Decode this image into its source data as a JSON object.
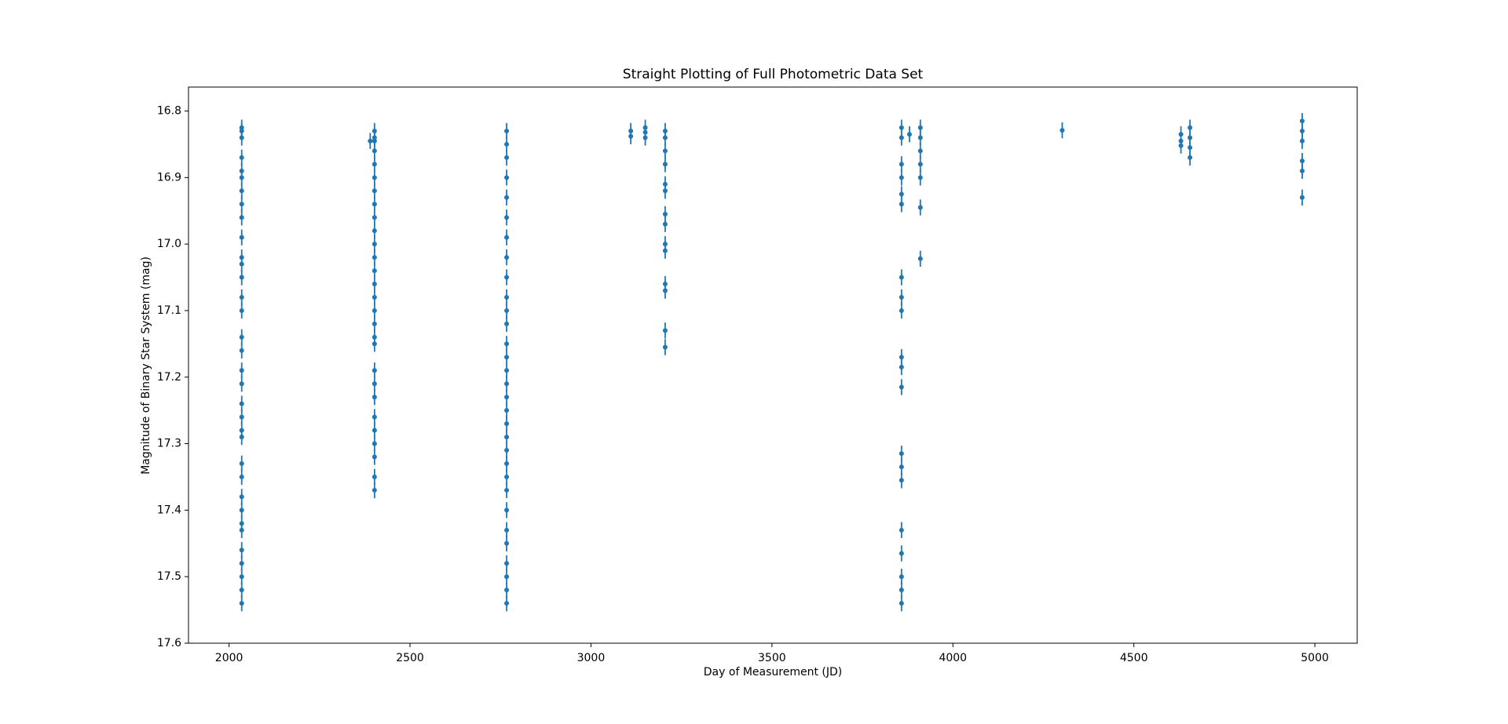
{
  "chart_data": {
    "type": "errorbar-scatter",
    "title": "Straight Plotting of Full Photometric Data Set",
    "x_label": "Day of Measurement (JD)",
    "y_label": "Magnitude of Binary Star System (mag)",
    "color": "#1f77b4",
    "xlim": [
      1888,
      5117
    ],
    "ylim": [
      16.764,
      17.6
    ],
    "y_inverted": true,
    "xticks": [
      2000,
      2500,
      3000,
      3500,
      4000,
      4500,
      5000
    ],
    "yticks": [
      16.8,
      16.9,
      {
        "value": 17.0,
        "label": "17.0"
      },
      17.1,
      17.2,
      17.3,
      17.4,
      17.5,
      17.6
    ],
    "yerr": 0.012,
    "x": [
      2035,
      2035,
      2035,
      2035,
      2035,
      2035,
      2035,
      2035,
      2035,
      2035,
      2035,
      2035,
      2035,
      2035,
      2035,
      2035,
      2035,
      2035,
      2035,
      2035,
      2035,
      2035,
      2035,
      2035,
      2035,
      2035,
      2035,
      2035,
      2035,
      2035,
      2035,
      2035,
      2035,
      2035,
      2390,
      2402,
      2402,
      2402,
      2402,
      2402,
      2402,
      2402,
      2402,
      2402,
      2402,
      2402,
      2402,
      2402,
      2402,
      2402,
      2402,
      2402,
      2402,
      2402,
      2402,
      2402,
      2402,
      2402,
      2402,
      2402,
      2402,
      2402,
      2402,
      2767,
      2767,
      2767,
      2767,
      2767,
      2767,
      2767,
      2767,
      2767,
      2767,
      2767,
      2767,
      2767,
      2767,
      2767,
      2767,
      2767,
      2767,
      2767,
      2767,
      2767,
      2767,
      2767,
      2767,
      2767,
      2767,
      2767,
      2767,
      2767,
      2767,
      2767,
      3110,
      3110,
      3150,
      3150,
      3150,
      3205,
      3205,
      3205,
      3205,
      3205,
      3205,
      3205,
      3205,
      3205,
      3205,
      3205,
      3205,
      3205,
      3205,
      3858,
      3858,
      3858,
      3858,
      3858,
      3858,
      3858,
      3858,
      3858,
      3858,
      3858,
      3858,
      3858,
      3858,
      3858,
      3858,
      3858,
      3858,
      3858,
      3858,
      3880,
      3910,
      3910,
      3910,
      3910,
      3910,
      3910,
      3910,
      4302,
      4630,
      4630,
      4630,
      4655,
      4655,
      4655,
      4655,
      4965,
      4965,
      4965,
      4965,
      4965,
      4965
    ],
    "values": [
      16.825,
      16.83,
      16.84,
      16.87,
      16.89,
      16.9,
      16.92,
      16.94,
      16.96,
      16.99,
      17.02,
      17.03,
      17.05,
      17.08,
      17.1,
      17.14,
      17.16,
      17.19,
      17.21,
      17.24,
      17.26,
      17.28,
      17.29,
      17.33,
      17.35,
      17.38,
      17.4,
      17.42,
      17.43,
      17.46,
      17.48,
      17.5,
      17.52,
      17.54,
      16.845,
      16.83,
      16.84,
      16.845,
      16.86,
      16.88,
      16.9,
      16.92,
      16.94,
      16.96,
      16.98,
      17.0,
      17.02,
      17.04,
      17.06,
      17.08,
      17.1,
      17.12,
      17.14,
      17.15,
      17.19,
      17.21,
      17.23,
      17.26,
      17.28,
      17.3,
      17.32,
      17.35,
      17.37,
      16.83,
      16.85,
      16.87,
      16.9,
      16.93,
      16.96,
      16.99,
      17.02,
      17.05,
      17.08,
      17.1,
      17.12,
      17.15,
      17.17,
      17.19,
      17.21,
      17.23,
      17.25,
      17.27,
      17.29,
      17.31,
      17.33,
      17.35,
      17.37,
      17.4,
      17.43,
      17.45,
      17.48,
      17.5,
      17.52,
      17.54,
      16.83,
      16.838,
      16.825,
      16.832,
      16.84,
      16.83,
      16.84,
      16.86,
      16.88,
      16.91,
      16.92,
      16.955,
      16.97,
      17.0,
      17.01,
      17.06,
      17.07,
      17.13,
      17.155,
      16.825,
      16.84,
      16.88,
      16.9,
      16.925,
      16.94,
      17.05,
      17.08,
      17.1,
      17.17,
      17.185,
      17.215,
      17.315,
      17.335,
      17.355,
      17.43,
      17.465,
      17.5,
      17.52,
      17.54,
      16.835,
      16.825,
      16.84,
      16.86,
      16.88,
      16.9,
      16.945,
      17.022,
      16.829,
      16.835,
      16.845,
      16.852,
      16.825,
      16.84,
      16.855,
      16.87,
      16.815,
      16.83,
      16.845,
      16.875,
      16.89,
      16.93
    ]
  }
}
